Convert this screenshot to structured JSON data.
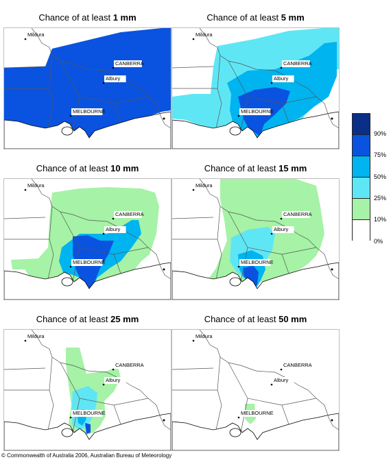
{
  "panels": [
    {
      "prefix": "Chance of at least ",
      "amount": "1 mm",
      "level": 0
    },
    {
      "prefix": "Chance of at least ",
      "amount": "5 mm",
      "level": 1
    },
    {
      "prefix": "Chance of at least ",
      "amount": "10 mm",
      "level": 2
    },
    {
      "prefix": "Chance of at least ",
      "amount": "15 mm",
      "level": 3
    },
    {
      "prefix": "Chance of at least ",
      "amount": "25 mm",
      "level": 4
    },
    {
      "prefix": "Chance of at least ",
      "amount": "50 mm",
      "level": 5
    }
  ],
  "places": {
    "mildura": "Mildura",
    "canberra": "CANBERRA",
    "albury": "Albury",
    "melbourne": "MELBOURNE"
  },
  "legend": {
    "ticks": [
      "90%",
      "75%",
      "50%",
      "25%",
      "10%",
      "0%"
    ],
    "colors": [
      "#0a2f86",
      "#0a53e0",
      "#00b4f0",
      "#5fe6f5",
      "#a6f2a6",
      "#ffffff"
    ]
  },
  "copyright": "© Commonwealth of Australia 2006, Australian Bureau of Meteorology"
}
